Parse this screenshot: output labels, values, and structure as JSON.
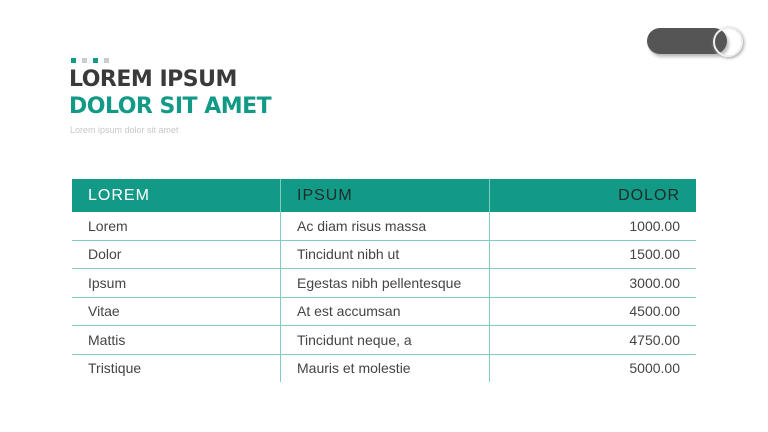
{
  "header": {
    "title": "LOREM IPSUM",
    "subtitle": "DOLOR SIT AMET",
    "caption": "Lorem ipsum dolor sit amet"
  },
  "toggle": {
    "state": "on"
  },
  "colors": {
    "accent": "#139a87",
    "dark": "#3a3a3a"
  },
  "table": {
    "columns": [
      "LOREM",
      "IPSUM",
      "DOLOR"
    ],
    "rows": [
      [
        "Lorem",
        "Ac diam risus massa",
        "1000.00"
      ],
      [
        "Dolor",
        "Tincidunt nibh ut",
        "1500.00"
      ],
      [
        "Ipsum",
        "Egestas nibh pellentesque",
        "3000.00"
      ],
      [
        "Vitae",
        "At est accumsan",
        "4500.00"
      ],
      [
        "Mattis",
        "Tincidunt neque, a",
        "4750.00"
      ],
      [
        "Tristique",
        "Mauris et molestie",
        "5000.00"
      ]
    ]
  }
}
